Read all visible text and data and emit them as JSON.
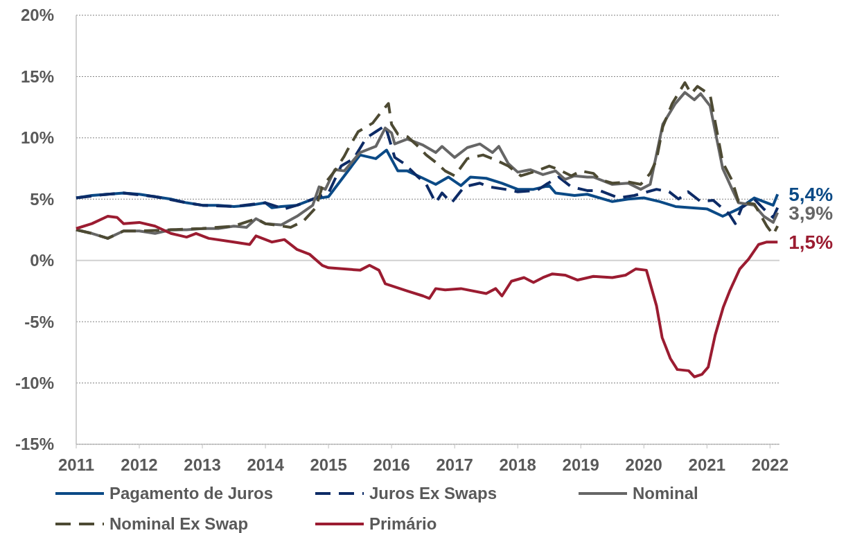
{
  "chart_data": {
    "type": "line",
    "xlim": [
      2011,
      2022.15
    ],
    "xticks": [
      2011,
      2012,
      2013,
      2014,
      2015,
      2016,
      2017,
      2018,
      2019,
      2020,
      2021,
      2022
    ],
    "ylim": [
      -15,
      20
    ],
    "yticks": [
      {
        "value": -15,
        "label": "-15%"
      },
      {
        "value": -10,
        "label": "-10%"
      },
      {
        "value": -5,
        "label": "-5%"
      },
      {
        "value": 0,
        "label": "0%"
      },
      {
        "value": 5,
        "label": "5%"
      },
      {
        "value": 10,
        "label": "10%"
      },
      {
        "value": 15,
        "label": "15%"
      },
      {
        "value": 20,
        "label": "20%"
      }
    ],
    "grid": "y",
    "legend": "bottom",
    "marker": "none",
    "series": [
      {
        "name": "Pagamento de Juros",
        "color": "#0b4a86",
        "line_style": "solid",
        "x": [
          2011,
          2011.25,
          2011.5,
          2011.75,
          2012,
          2012.25,
          2012.5,
          2012.75,
          2013,
          2013.25,
          2013.5,
          2013.75,
          2014,
          2014.1,
          2014.25,
          2014.5,
          2014.75,
          2015,
          2015.25,
          2015.5,
          2015.75,
          2015.92,
          2016.1,
          2016.25,
          2016.5,
          2016.7,
          2016.9,
          2017.1,
          2017.25,
          2017.5,
          2017.75,
          2018,
          2018.25,
          2018.5,
          2018.6,
          2018.9,
          2019.1,
          2019.5,
          2019.75,
          2020,
          2020.25,
          2020.5,
          2020.75,
          2021,
          2021.25,
          2021.5,
          2021.75,
          2021.9,
          2022.05,
          2022.12
        ],
        "values": [
          5.1,
          5.3,
          5.4,
          5.5,
          5.4,
          5.2,
          5.0,
          4.7,
          4.5,
          4.5,
          4.4,
          4.5,
          4.7,
          4.3,
          4.4,
          4.5,
          5.0,
          5.2,
          6.9,
          8.6,
          8.3,
          9.0,
          7.3,
          7.3,
          6.7,
          6.2,
          6.8,
          6.1,
          6.8,
          6.7,
          6.3,
          5.8,
          5.8,
          6.1,
          5.5,
          5.3,
          5.4,
          4.8,
          5.0,
          5.1,
          4.8,
          4.4,
          4.3,
          4.2,
          3.6,
          4.2,
          5.1,
          4.8,
          4.5,
          5.4
        ],
        "value_labels": [
          null,
          null,
          null,
          null,
          null,
          null,
          null,
          null,
          null,
          null,
          null,
          null,
          null,
          null,
          null,
          null,
          null,
          null,
          null,
          null,
          null,
          null,
          null,
          null,
          null,
          null,
          null,
          null,
          null,
          null,
          null,
          null,
          null,
          null,
          null,
          null,
          null,
          null,
          null,
          null,
          null,
          null,
          null,
          null,
          null,
          null,
          null,
          null,
          null,
          "5,4%"
        ]
      },
      {
        "name": "Juros Ex Swaps",
        "color": "#0d2b66",
        "line_style": "dashed",
        "x": [
          2011,
          2011.5,
          2011.75,
          2012.25,
          2012.75,
          2013,
          2013.5,
          2014,
          2014.3,
          2014.5,
          2014.75,
          2015,
          2015.2,
          2015.4,
          2015.6,
          2015.75,
          2015.9,
          2016.05,
          2016.2,
          2016.4,
          2016.55,
          2016.7,
          2016.8,
          2016.95,
          2017.15,
          2017.4,
          2017.55,
          2017.8,
          2018,
          2018.3,
          2018.45,
          2018.65,
          2018.85,
          2019.1,
          2019.3,
          2019.6,
          2019.85,
          2020.2,
          2020.4,
          2020.55,
          2020.7,
          2020.9,
          2021.1,
          2021.35,
          2021.45,
          2021.55,
          2021.75,
          2021.9,
          2022.05,
          2022.12
        ],
        "values": [
          5.1,
          5.4,
          5.5,
          5.2,
          4.7,
          4.5,
          4.4,
          4.7,
          4.2,
          4.5,
          5.0,
          5.5,
          7.7,
          8.3,
          10.0,
          10.5,
          11.0,
          8.4,
          7.9,
          6.9,
          6.2,
          4.7,
          5.5,
          4.7,
          6.0,
          6.3,
          6.0,
          5.8,
          5.6,
          5.7,
          6.2,
          6.8,
          6.0,
          5.7,
          5.7,
          5.1,
          5.3,
          5.8,
          5.6,
          5.0,
          5.6,
          4.8,
          4.9,
          3.8,
          3.0,
          4.3,
          5.0,
          4.2,
          3.5,
          4.3
        ]
      },
      {
        "name": "Nominal",
        "color": "#666666",
        "line_style": "solid",
        "x": [
          2011,
          2011.25,
          2011.5,
          2011.75,
          2012,
          2012.25,
          2012.5,
          2012.75,
          2013,
          2013.25,
          2013.5,
          2013.7,
          2013.85,
          2014,
          2014.25,
          2014.5,
          2014.75,
          2014.85,
          2014.95,
          2015.1,
          2015.25,
          2015.5,
          2015.75,
          2015.9,
          2016,
          2016.05,
          2016.25,
          2016.5,
          2016.7,
          2016.8,
          2017,
          2017.2,
          2017.4,
          2017.6,
          2017.7,
          2017.85,
          2018,
          2018.2,
          2018.4,
          2018.6,
          2018.75,
          2018.9,
          2019.1,
          2019.2,
          2019.5,
          2019.75,
          2019.95,
          2020.1,
          2020.3,
          2020.5,
          2020.65,
          2020.8,
          2020.9,
          2021.05,
          2021.25,
          2021.4,
          2021.5,
          2021.75,
          2021.9,
          2022.05,
          2022.12
        ],
        "values": [
          2.5,
          2.2,
          1.8,
          2.4,
          2.4,
          2.2,
          2.5,
          2.5,
          2.6,
          2.6,
          2.8,
          2.7,
          3.4,
          3.0,
          2.9,
          3.6,
          4.5,
          6.0,
          5.8,
          7.4,
          7.3,
          8.8,
          9.3,
          10.8,
          10.4,
          9.5,
          9.9,
          9.4,
          8.8,
          9.3,
          8.4,
          9.2,
          9.5,
          8.8,
          9.3,
          7.9,
          7.2,
          7.4,
          7.0,
          7.3,
          6.6,
          6.9,
          6.8,
          6.8,
          6.2,
          6.3,
          5.8,
          6.2,
          11.1,
          12.8,
          13.7,
          13.1,
          13.6,
          12.6,
          7.5,
          5.8,
          4.7,
          4.5,
          3.6,
          3.1,
          3.9
        ],
        "value_labels": [
          null,
          null,
          null,
          null,
          null,
          null,
          null,
          null,
          null,
          null,
          null,
          null,
          null,
          null,
          null,
          null,
          null,
          null,
          null,
          null,
          null,
          null,
          null,
          null,
          null,
          null,
          null,
          null,
          null,
          null,
          null,
          null,
          null,
          null,
          null,
          null,
          null,
          null,
          null,
          null,
          null,
          null,
          null,
          null,
          null,
          null,
          null,
          null,
          null,
          null,
          null,
          null,
          null,
          null,
          null,
          null,
          null,
          null,
          null,
          null,
          "3,9%"
        ]
      },
      {
        "name": "Nominal Ex Swap",
        "color": "#4d4a33",
        "line_style": "dashed",
        "x": [
          2011,
          2011.25,
          2011.5,
          2011.75,
          2012,
          2012.5,
          2013,
          2013.5,
          2013.85,
          2014,
          2014.4,
          2014.6,
          2014.8,
          2014.9,
          2015.1,
          2015.25,
          2015.3,
          2015.47,
          2015.7,
          2015.85,
          2015.95,
          2016,
          2016.1,
          2016.25,
          2016.4,
          2016.55,
          2016.7,
          2016.85,
          2017,
          2017.2,
          2017.45,
          2017.65,
          2017.85,
          2018.05,
          2018.3,
          2018.5,
          2018.65,
          2018.85,
          2019,
          2019.2,
          2019.3,
          2019.5,
          2019.75,
          2019.95,
          2020.1,
          2020.2,
          2020.3,
          2020.45,
          2020.65,
          2020.75,
          2020.85,
          2021.05,
          2021.25,
          2021.4,
          2021.5,
          2021.75,
          2021.95,
          2022.05,
          2022.12
        ],
        "values": [
          2.5,
          2.2,
          1.8,
          2.4,
          2.4,
          2.5,
          2.6,
          2.8,
          3.4,
          3.0,
          2.7,
          3.2,
          4.3,
          6.0,
          7.3,
          8.5,
          9.0,
          10.5,
          11.2,
          12.2,
          12.8,
          11.1,
          10.3,
          10.1,
          9.4,
          8.6,
          8.0,
          7.3,
          6.9,
          8.3,
          8.6,
          8.2,
          7.7,
          6.9,
          7.3,
          7.7,
          7.4,
          6.9,
          7.3,
          7.1,
          6.6,
          6.3,
          6.4,
          6.2,
          7.1,
          8.2,
          10.9,
          12.8,
          14.5,
          13.6,
          14.2,
          13.5,
          8.0,
          6.5,
          4.8,
          4.6,
          2.8,
          2.1,
          2.8
        ]
      },
      {
        "name": "Primário",
        "color": "#9b1c31",
        "line_style": "solid",
        "x": [
          2011,
          2011.25,
          2011.5,
          2011.65,
          2011.75,
          2012,
          2012.25,
          2012.5,
          2012.75,
          2012.9,
          2013.1,
          2013.5,
          2013.75,
          2013.85,
          2014.1,
          2014.3,
          2014.5,
          2014.7,
          2014.9,
          2015,
          2015.25,
          2015.5,
          2015.65,
          2015.8,
          2015.9,
          2016.25,
          2016.5,
          2016.6,
          2016.7,
          2016.85,
          2017.1,
          2017.5,
          2017.65,
          2017.75,
          2017.9,
          2018.1,
          2018.25,
          2018.4,
          2018.55,
          2018.75,
          2018.95,
          2019.2,
          2019.5,
          2019.71,
          2019.87,
          2020.04,
          2020.2,
          2020.29,
          2020.42,
          2020.53,
          2020.71,
          2020.8,
          2020.92,
          2021.02,
          2021.13,
          2021.26,
          2021.36,
          2021.52,
          2021.66,
          2021.82,
          2021.95,
          2022.02,
          2022.12
        ],
        "values": [
          2.6,
          3.0,
          3.6,
          3.5,
          3.0,
          3.1,
          2.8,
          2.2,
          1.9,
          2.2,
          1.8,
          1.5,
          1.3,
          2.0,
          1.5,
          1.7,
          0.9,
          0.5,
          -0.4,
          -0.6,
          -0.7,
          -0.8,
          -0.4,
          -0.8,
          -1.9,
          -2.5,
          -2.9,
          -3.1,
          -2.3,
          -2.4,
          -2.3,
          -2.7,
          -2.3,
          -2.9,
          -1.7,
          -1.4,
          -1.8,
          -1.4,
          -1.1,
          -1.2,
          -1.6,
          -1.3,
          -1.4,
          -1.2,
          -0.7,
          -0.8,
          -3.7,
          -6.3,
          -8.0,
          -8.9,
          -9.0,
          -9.5,
          -9.3,
          -8.7,
          -6.1,
          -3.8,
          -2.5,
          -0.7,
          0.1,
          1.3,
          1.5,
          1.5,
          1.5
        ],
        "value_labels": [
          null,
          null,
          null,
          null,
          null,
          null,
          null,
          null,
          null,
          null,
          null,
          null,
          null,
          null,
          null,
          null,
          null,
          null,
          null,
          null,
          null,
          null,
          null,
          null,
          null,
          null,
          null,
          null,
          null,
          null,
          null,
          null,
          null,
          null,
          null,
          null,
          null,
          null,
          null,
          null,
          null,
          null,
          null,
          null,
          null,
          null,
          null,
          null,
          null,
          null,
          null,
          null,
          null,
          null,
          null,
          null,
          null,
          null,
          null,
          null,
          null,
          null,
          "1,5%"
        ]
      }
    ]
  }
}
